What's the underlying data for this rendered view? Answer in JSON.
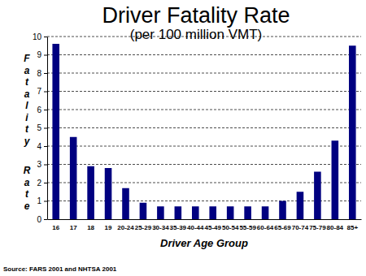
{
  "chart_data": {
    "type": "bar",
    "title": "Driver Fatality Rate",
    "subtitle": "(per 100 million VMT)",
    "x_label": "Driver Age Group",
    "y_label": "Fatality Rate",
    "source": "Source: FARS 2001 and NHTSA 2001",
    "categories": [
      "16",
      "17",
      "18",
      "19",
      "20-24",
      "25-29",
      "30-34",
      "35-39",
      "40-44",
      "45-49",
      "50-54",
      "55-59",
      "60-64",
      "65-69",
      "70-74",
      "75-79",
      "80-84",
      "85+"
    ],
    "values": [
      9.6,
      4.5,
      2.9,
      2.8,
      1.7,
      0.9,
      0.7,
      0.7,
      0.7,
      0.7,
      0.7,
      0.7,
      0.7,
      1.0,
      1.5,
      2.6,
      4.3,
      9.5
    ],
    "color": "#000080",
    "ylim": [
      0,
      10
    ],
    "yticks": [
      0,
      1,
      2,
      3,
      4,
      5,
      6,
      7,
      8,
      9,
      10
    ],
    "grid": true
  }
}
